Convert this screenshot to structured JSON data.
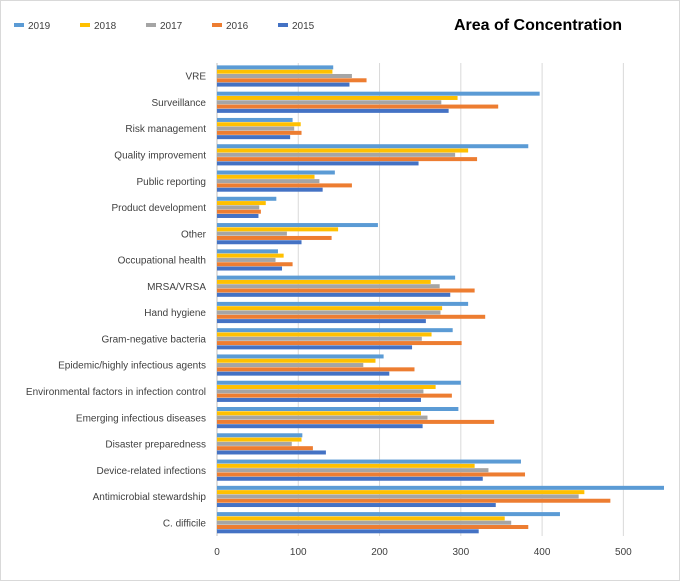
{
  "chart_data": {
    "type": "bar",
    "orientation": "horizontal",
    "title": "Area of Concentration",
    "xlabel": "",
    "ylabel": "",
    "xlim": [
      0,
      550
    ],
    "x_ticks": [
      0,
      100,
      200,
      300,
      400,
      500
    ],
    "grid": "vertical",
    "legend_position": "top-left",
    "categories": [
      "VRE",
      "Surveillance",
      "Risk management",
      "Quality improvement",
      "Public reporting",
      "Product development",
      "Other",
      "Occupational health",
      "MRSA/VRSA",
      "Hand hygiene",
      "Gram-negative bacteria",
      "Epidemic/highly infectious agents",
      "Environmental factors in infection control",
      "Emerging infectious diseases",
      "Disaster preparedness",
      "Device-related infections",
      "Antimicrobial stewardship",
      "C. difficile"
    ],
    "series": [
      {
        "name": "2019",
        "color": "#5b9bd5",
        "values": [
          143,
          397,
          93,
          383,
          145,
          73,
          198,
          75,
          293,
          309,
          290,
          205,
          300,
          297,
          105,
          374,
          550,
          422
        ]
      },
      {
        "name": "2018",
        "color": "#ffc000",
        "values": [
          142,
          296,
          103,
          309,
          120,
          60,
          149,
          82,
          263,
          277,
          264,
          195,
          269,
          251,
          104,
          317,
          452,
          354
        ]
      },
      {
        "name": "2017",
        "color": "#a5a5a5",
        "values": [
          166,
          276,
          95,
          293,
          126,
          52,
          86,
          72,
          274,
          275,
          252,
          180,
          254,
          259,
          92,
          334,
          445,
          362
        ]
      },
      {
        "name": "2016",
        "color": "#ed7d31",
        "values": [
          184,
          346,
          104,
          320,
          166,
          54,
          141,
          93,
          317,
          330,
          301,
          243,
          289,
          341,
          118,
          379,
          484,
          383
        ]
      },
      {
        "name": "2015",
        "color": "#4472c4",
        "values": [
          163,
          285,
          90,
          248,
          130,
          51,
          104,
          80,
          287,
          257,
          240,
          212,
          251,
          253,
          134,
          327,
          343,
          322
        ]
      }
    ]
  }
}
